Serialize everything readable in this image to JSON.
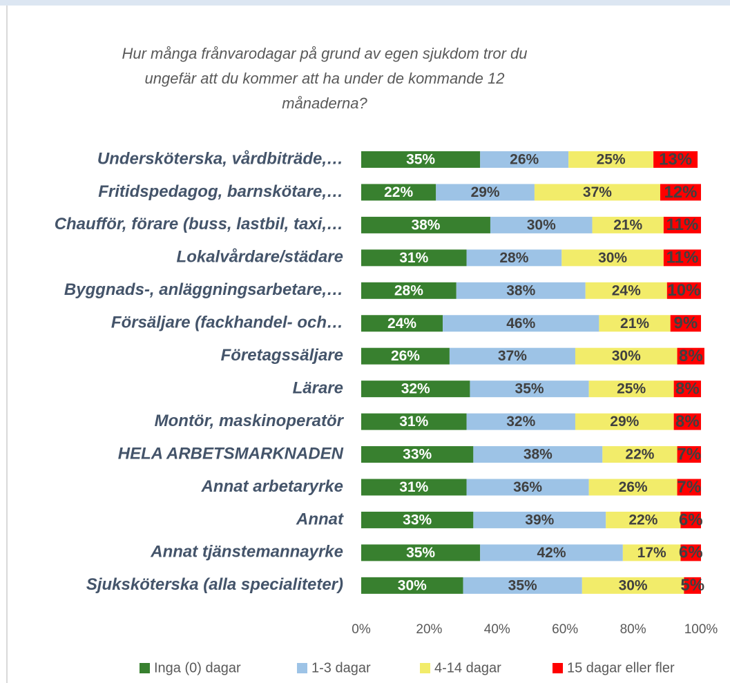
{
  "chart_data": {
    "type": "stacked-bar-horizontal",
    "title": "Hur många frånvarodagar på grund av egen sjukdom tror du ungefär att du kommer att ha under de kommande 12 månaderna?",
    "categories": [
      "Undersköterska, vårdbiträde,…",
      "Fritidspedagog, barnskötare,…",
      "Chaufför, förare (buss, lastbil, taxi,…",
      "Lokalvårdare/städare",
      "Byggnads-, anläggningsarbetare,…",
      "Försäljare (fackhandel- och…",
      "Företagssäljare",
      "Lärare",
      "Montör, maskinoperatör",
      "HELA ARBETSMARKNADEN",
      "Annat arbetaryrke",
      "Annat",
      "Annat tjänstemannayrke",
      "Sjuksköterska (alla specialiteter)"
    ],
    "series": [
      {
        "name": "Inga (0) dagar",
        "color": "#38802f",
        "values": [
          35,
          22,
          38,
          31,
          28,
          24,
          26,
          32,
          31,
          33,
          31,
          33,
          35,
          30
        ],
        "value_labels": [
          "35%",
          "22%",
          "38%",
          "31%",
          "28%",
          "24%",
          "26%",
          "32%",
          "31%",
          "33%",
          "31%",
          "33%",
          "35%",
          "30%"
        ]
      },
      {
        "name": "1-3 dagar",
        "color": "#9dc3e6",
        "values": [
          26,
          29,
          30,
          28,
          38,
          46,
          37,
          35,
          32,
          38,
          36,
          39,
          42,
          35
        ],
        "value_labels": [
          "26%",
          "29%",
          "30%",
          "28%",
          "38%",
          "46%",
          "37%",
          "35%",
          "32%",
          "38%",
          "36%",
          "39%",
          "42%",
          "35%"
        ]
      },
      {
        "name": "4-14 dagar",
        "color": "#f2ec6a",
        "values": [
          25,
          37,
          21,
          30,
          24,
          21,
          30,
          25,
          29,
          22,
          26,
          22,
          17,
          30
        ],
        "value_labels": [
          "25%",
          "37%",
          "21%",
          "30%",
          "24%",
          "21%",
          "30%",
          "25%",
          "29%",
          "22%",
          "26%",
          "22%",
          "17%",
          "30%"
        ]
      },
      {
        "name": "15 dagar eller fler",
        "color": "#ff0000",
        "values": [
          13,
          12,
          11,
          11,
          10,
          9,
          8,
          8,
          8,
          7,
          7,
          6,
          6,
          5
        ],
        "value_labels": [
          "13%",
          "12%",
          "11%",
          "11%",
          "10%",
          "9%",
          "8%",
          "8%",
          "8%",
          "7%",
          "7%",
          "6%",
          "6%",
          "5%"
        ]
      }
    ],
    "xlim": [
      0,
      100
    ],
    "xticks": [
      {
        "value": 0,
        "label": "0%"
      },
      {
        "value": 20,
        "label": "20%"
      },
      {
        "value": 40,
        "label": "40%"
      },
      {
        "value": 60,
        "label": "60%"
      },
      {
        "value": 80,
        "label": "80%"
      },
      {
        "value": 100,
        "label": "100%"
      }
    ],
    "legend": "bottom"
  }
}
